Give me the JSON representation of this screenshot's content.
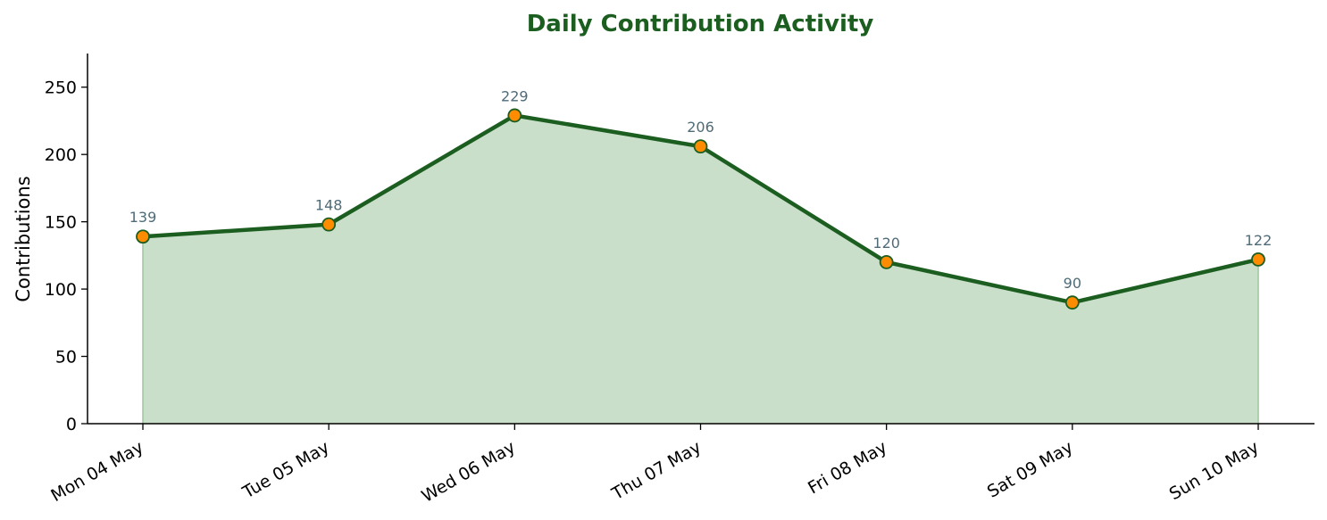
{
  "chart_data": {
    "type": "area",
    "title": "Daily Contribution Activity",
    "xlabel": "",
    "ylabel": "Contributions",
    "categories": [
      "Mon 04 May",
      "Tue 05 May",
      "Wed 06 May",
      "Thu 07 May",
      "Fri 08 May",
      "Sat 09 May",
      "Sun 10 May"
    ],
    "series": [
      {
        "values": [
          139,
          148,
          229,
          206,
          120,
          90,
          122
        ]
      }
    ],
    "ylim": [
      0,
      275
    ],
    "yticks": [
      0,
      50,
      100,
      150,
      200,
      250
    ],
    "data_labels": true,
    "grid": false,
    "legend": "none",
    "colors": {
      "title": "#1b5e20",
      "line": "#1b5e20",
      "fill": "#cadfca",
      "fill_edge": "#9cc79c",
      "marker_fill": "#ff8c00",
      "marker_edge": "#1b5e20",
      "data_label": "#4f6b78",
      "axis": "#000000"
    }
  }
}
